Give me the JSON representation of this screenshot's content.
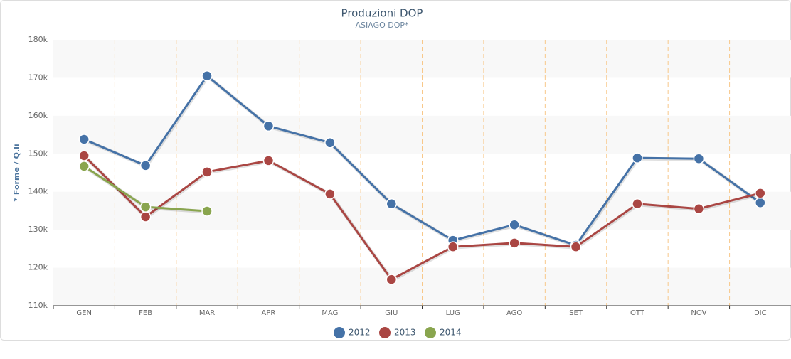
{
  "chart_data": {
    "type": "line",
    "title": "Produzioni DOP",
    "subtitle": "ASIAGO DOP*",
    "y_label": "* Forme / Q.li",
    "categories": [
      "GEN",
      "FEB",
      "MAR",
      "APR",
      "MAG",
      "GIU",
      "LUG",
      "AGO",
      "SET",
      "OTT",
      "NOV",
      "DIC"
    ],
    "series": [
      {
        "name": "2012",
        "color": "#4572a7",
        "values": [
          153800,
          146900,
          170500,
          157300,
          152900,
          136800,
          127200,
          131300,
          125900,
          148900,
          148700,
          137100
        ]
      },
      {
        "name": "2013",
        "color": "#aa4643",
        "values": [
          149500,
          133400,
          145200,
          148200,
          139400,
          116900,
          125500,
          126500,
          125500,
          136800,
          135500,
          139600
        ]
      },
      {
        "name": "2014",
        "color": "#89a54e",
        "values": [
          146700,
          136000,
          134900,
          null,
          null,
          null,
          null,
          null,
          null,
          null,
          null,
          null
        ]
      }
    ],
    "ylim": [
      110000,
      180000
    ],
    "yticks": [
      {
        "value": 110000,
        "label": "110k"
      },
      {
        "value": 120000,
        "label": "120k"
      },
      {
        "value": 130000,
        "label": "130k"
      },
      {
        "value": 140000,
        "label": "140k"
      },
      {
        "value": 150000,
        "label": "150k"
      },
      {
        "value": 160000,
        "label": "160k"
      },
      {
        "value": 170000,
        "label": "170k"
      },
      {
        "value": 180000,
        "label": "180k"
      }
    ],
    "grid": true,
    "legend": "bottom"
  }
}
